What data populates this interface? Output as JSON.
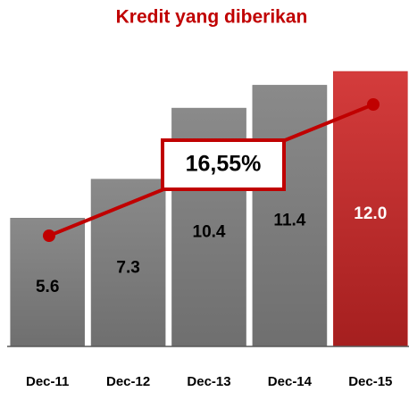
{
  "chart_data": {
    "type": "bar",
    "title": "Kredit yang diberikan",
    "categories": [
      "Dec-11",
      "Dec-12",
      "Dec-13",
      "Dec-14",
      "Dec-15"
    ],
    "values": [
      5.6,
      7.3,
      10.4,
      11.4,
      12.0
    ],
    "value_labels": [
      "5.6",
      "7.3",
      "10.4",
      "11.4",
      "12.0"
    ],
    "colors": [
      "#7f7f7f",
      "#7f7f7f",
      "#7f7f7f",
      "#7f7f7f",
      "#c62f2f"
    ],
    "ylim": [
      0,
      12
    ],
    "annotation": "16,55%"
  }
}
